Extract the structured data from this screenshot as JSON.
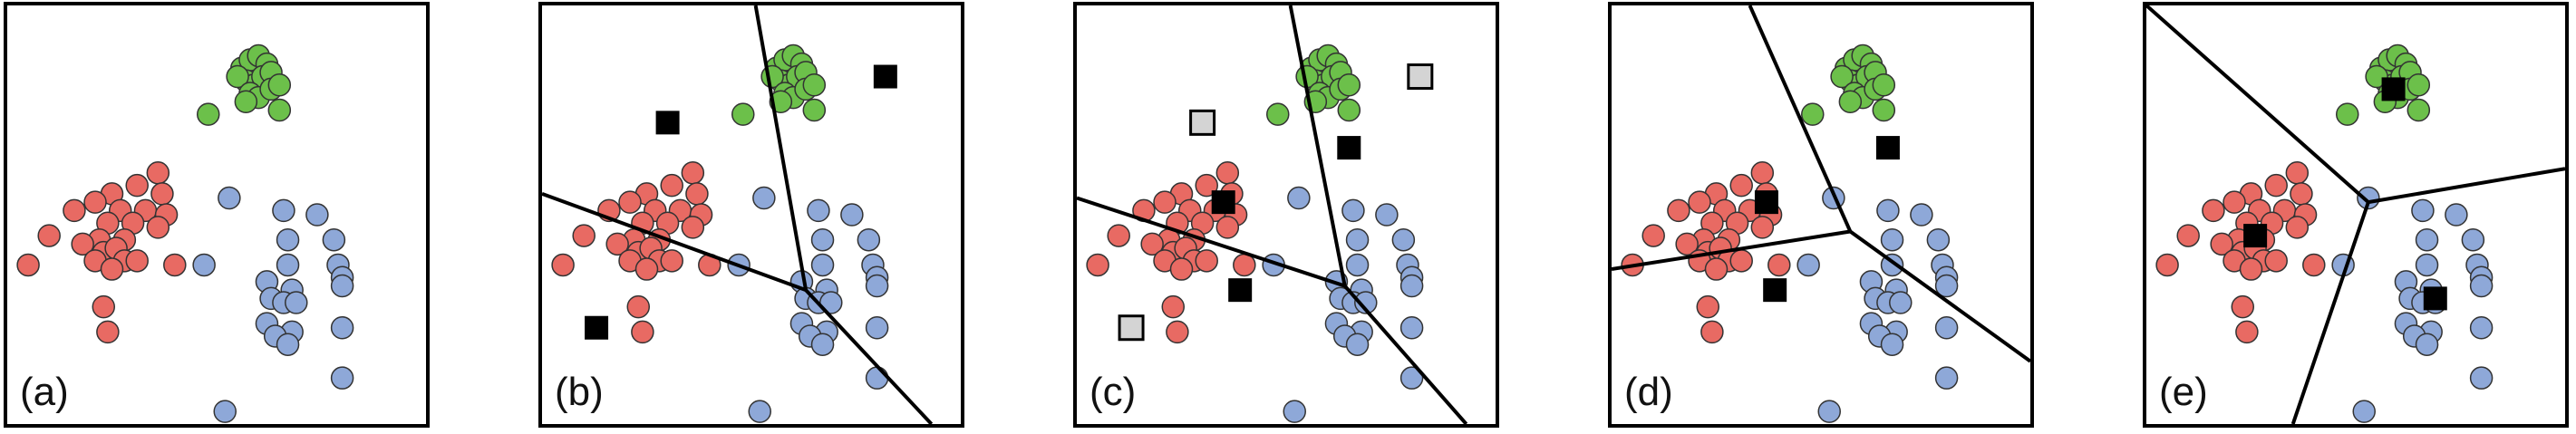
{
  "chart_data": {
    "type": "scatter",
    "colors": {
      "green": "#6cc04a",
      "red": "#e86a63",
      "blue": "#8ea8d8",
      "centroid": "#000000",
      "stale_centroid": "#d4d4d4",
      "boundary": "#000000"
    },
    "points": [
      {
        "color": "green",
        "values": [
          [
            0.56,
            0.15
          ],
          [
            0.58,
            0.13
          ],
          [
            0.6,
            0.12
          ],
          [
            0.62,
            0.14
          ],
          [
            0.57,
            0.18
          ],
          [
            0.59,
            0.19
          ],
          [
            0.61,
            0.17
          ],
          [
            0.63,
            0.16
          ],
          [
            0.55,
            0.17
          ],
          [
            0.58,
            0.21
          ],
          [
            0.6,
            0.22
          ],
          [
            0.63,
            0.2
          ],
          [
            0.65,
            0.19
          ],
          [
            0.57,
            0.23
          ],
          [
            0.65,
            0.25
          ],
          [
            0.48,
            0.26
          ]
        ]
      },
      {
        "color": "red",
        "values": [
          [
            0.36,
            0.4
          ],
          [
            0.31,
            0.43
          ],
          [
            0.37,
            0.45
          ],
          [
            0.25,
            0.45
          ],
          [
            0.21,
            0.47
          ],
          [
            0.27,
            0.49
          ],
          [
            0.33,
            0.49
          ],
          [
            0.16,
            0.49
          ],
          [
            0.38,
            0.5
          ],
          [
            0.24,
            0.52
          ],
          [
            0.3,
            0.52
          ],
          [
            0.36,
            0.53
          ],
          [
            0.1,
            0.55
          ],
          [
            0.22,
            0.56
          ],
          [
            0.28,
            0.56
          ],
          [
            0.18,
            0.57
          ],
          [
            0.23,
            0.59
          ],
          [
            0.26,
            0.58
          ],
          [
            0.21,
            0.61
          ],
          [
            0.28,
            0.61
          ],
          [
            0.31,
            0.61
          ],
          [
            0.05,
            0.62
          ],
          [
            0.25,
            0.63
          ],
          [
            0.4,
            0.62
          ],
          [
            0.23,
            0.72
          ],
          [
            0.24,
            0.78
          ]
        ]
      },
      {
        "color": "blue",
        "values": [
          [
            0.53,
            0.46
          ],
          [
            0.66,
            0.49
          ],
          [
            0.74,
            0.5
          ],
          [
            0.67,
            0.56
          ],
          [
            0.78,
            0.56
          ],
          [
            0.47,
            0.62
          ],
          [
            0.67,
            0.62
          ],
          [
            0.79,
            0.62
          ],
          [
            0.62,
            0.66
          ],
          [
            0.8,
            0.65
          ],
          [
            0.68,
            0.68
          ],
          [
            0.8,
            0.67
          ],
          [
            0.63,
            0.7
          ],
          [
            0.66,
            0.71
          ],
          [
            0.69,
            0.71
          ],
          [
            0.62,
            0.76
          ],
          [
            0.68,
            0.78
          ],
          [
            0.8,
            0.77
          ],
          [
            0.64,
            0.79
          ],
          [
            0.67,
            0.81
          ],
          [
            0.8,
            0.89
          ],
          [
            0.52,
            0.97
          ]
        ]
      }
    ],
    "panels": [
      {
        "label": "(a)",
        "centroids": [],
        "stale_centroids": [],
        "boundaries": []
      },
      {
        "label": "(b)",
        "centroids": [
          [
            0.3,
            0.28
          ],
          [
            0.82,
            0.17
          ],
          [
            0.13,
            0.77
          ]
        ],
        "stale_centroids": [],
        "boundaries": [
          [
            [
              0.0,
              0.45
            ],
            [
              0.63,
              0.68
            ]
          ],
          [
            [
              0.51,
              0.0
            ],
            [
              0.63,
              0.68
            ]
          ],
          [
            [
              0.63,
              0.68
            ],
            [
              0.93,
              1.0
            ]
          ]
        ]
      },
      {
        "label": "(c)",
        "centroids": [
          [
            0.35,
            0.47
          ],
          [
            0.65,
            0.34
          ],
          [
            0.39,
            0.68
          ]
        ],
        "stale_centroids": [
          [
            0.3,
            0.28
          ],
          [
            0.82,
            0.17
          ],
          [
            0.13,
            0.77
          ]
        ],
        "boundaries": [
          [
            [
              0.0,
              0.46
            ],
            [
              0.64,
              0.67
            ]
          ],
          [
            [
              0.51,
              0.0
            ],
            [
              0.64,
              0.67
            ]
          ],
          [
            [
              0.64,
              0.67
            ],
            [
              0.93,
              1.0
            ]
          ]
        ]
      },
      {
        "label": "(d)",
        "centroids": [
          [
            0.37,
            0.47
          ],
          [
            0.66,
            0.34
          ],
          [
            0.39,
            0.68
          ]
        ],
        "stale_centroids": [],
        "boundaries": [
          [
            [
              0.0,
              0.63
            ],
            [
              0.57,
              0.54
            ]
          ],
          [
            [
              0.33,
              0.0
            ],
            [
              0.57,
              0.54
            ]
          ],
          [
            [
              0.57,
              0.54
            ],
            [
              1.0,
              0.85
            ]
          ]
        ]
      },
      {
        "label": "(e)",
        "centroids": [
          [
            0.59,
            0.2
          ],
          [
            0.26,
            0.55
          ],
          [
            0.69,
            0.7
          ]
        ],
        "stale_centroids": [],
        "boundaries": [
          [
            [
              0.0,
              0.0
            ],
            [
              0.53,
              0.47
            ]
          ],
          [
            [
              0.53,
              0.47
            ],
            [
              1.0,
              0.39
            ]
          ],
          [
            [
              0.53,
              0.47
            ],
            [
              0.35,
              1.0
            ]
          ]
        ]
      }
    ]
  }
}
